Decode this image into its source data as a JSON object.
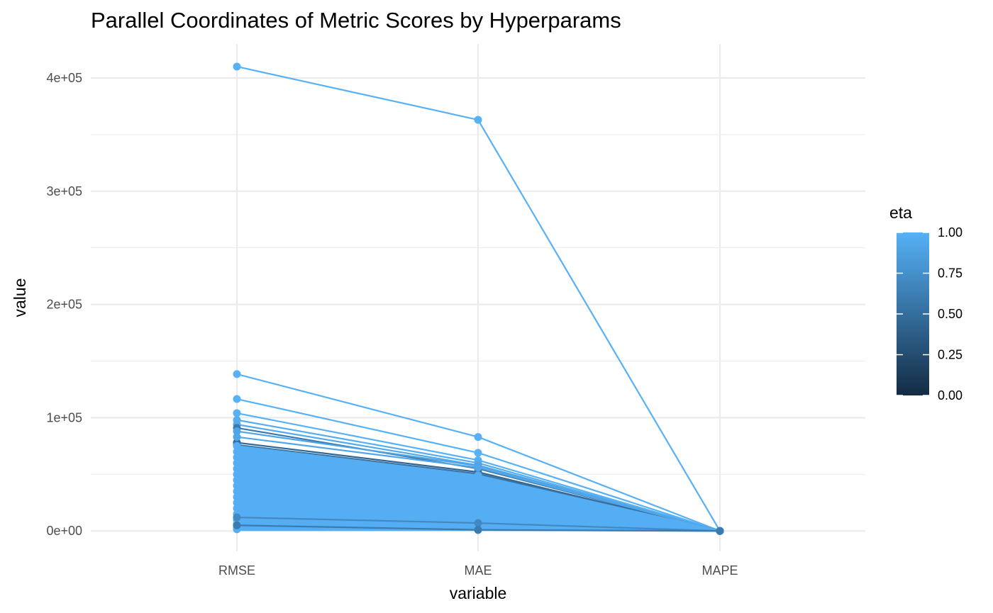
{
  "chart_data": {
    "type": "line",
    "title": "Parallel Coordinates of Metric Scores by Hyperparams",
    "xlabel": "variable",
    "ylabel": "value",
    "categories": [
      "RMSE",
      "MAE",
      "MAPE"
    ],
    "ylim": [
      -18000,
      430000
    ],
    "yticks": [
      {
        "value": 0,
        "label": "0e+00"
      },
      {
        "value": 100000,
        "label": "1e+05"
      },
      {
        "value": 200000,
        "label": "2e+05"
      },
      {
        "value": 300000,
        "label": "3e+05"
      },
      {
        "value": 400000,
        "label": "4e+05"
      }
    ],
    "y_minor_ticks": [
      50000,
      150000,
      250000,
      350000
    ],
    "grid": true,
    "legend": {
      "title": "eta",
      "position": "right",
      "labels": [
        {
          "value": 1.0,
          "label": "1.00"
        },
        {
          "value": 0.75,
          "label": "0.75"
        },
        {
          "value": 0.5,
          "label": "0.50"
        },
        {
          "value": 0.25,
          "label": "0.25"
        },
        {
          "value": 0.0,
          "label": "0.00"
        }
      ],
      "colors": {
        "low": "#132B43",
        "high": "#56B1F7"
      }
    },
    "series": [
      {
        "eta": 1.0,
        "values": [
          410000,
          363000,
          0.5
        ]
      },
      {
        "eta": 1.0,
        "values": [
          138500,
          83000,
          0.4
        ]
      },
      {
        "eta": 1.0,
        "values": [
          116500,
          69000,
          0.4
        ]
      },
      {
        "eta": 1.0,
        "values": [
          104000,
          62500,
          0.4
        ]
      },
      {
        "eta": 0.97,
        "values": [
          98000,
          60000,
          0.35
        ]
      },
      {
        "eta": 0.95,
        "values": [
          94000,
          58000,
          0.35
        ]
      },
      {
        "eta": 0.6,
        "values": [
          91000,
          55000,
          0.35
        ]
      },
      {
        "eta": 0.9,
        "values": [
          88000,
          57500,
          0.35
        ]
      },
      {
        "eta": 0.45,
        "values": [
          78000,
          52000,
          0.3
        ]
      },
      {
        "eta": 0.55,
        "values": [
          76000,
          50500,
          0.3
        ]
      },
      {
        "eta": 0.92,
        "values": [
          83000,
          56000,
          0.3
        ]
      },
      {
        "eta": 0.98,
        "values": [
          75000,
          49000,
          0.3
        ]
      },
      {
        "eta": 0.98,
        "values": [
          70000,
          46000,
          0.3
        ]
      },
      {
        "eta": 0.98,
        "values": [
          65000,
          42000,
          0.28
        ]
      },
      {
        "eta": 0.98,
        "values": [
          60000,
          39000,
          0.26
        ]
      },
      {
        "eta": 0.98,
        "values": [
          55000,
          36000,
          0.25
        ]
      },
      {
        "eta": 0.98,
        "values": [
          50000,
          33000,
          0.24
        ]
      },
      {
        "eta": 0.98,
        "values": [
          45000,
          30000,
          0.22
        ]
      },
      {
        "eta": 0.98,
        "values": [
          40000,
          27000,
          0.21
        ]
      },
      {
        "eta": 0.98,
        "values": [
          35000,
          24000,
          0.2
        ]
      },
      {
        "eta": 0.98,
        "values": [
          30000,
          20000,
          0.19
        ]
      },
      {
        "eta": 0.98,
        "values": [
          25000,
          16000,
          0.18
        ]
      },
      {
        "eta": 0.98,
        "values": [
          20000,
          12000,
          0.17
        ]
      },
      {
        "eta": 0.98,
        "values": [
          15000,
          9000,
          0.16
        ]
      },
      {
        "eta": 0.98,
        "values": [
          10000,
          6000,
          0.15
        ]
      },
      {
        "eta": 0.98,
        "values": [
          6000,
          3500,
          0.14
        ]
      },
      {
        "eta": 0.98,
        "values": [
          3000,
          1500,
          0.13
        ]
      },
      {
        "eta": 0.98,
        "values": [
          1500,
          800,
          0.12
        ]
      },
      {
        "eta": 0.7,
        "values": [
          12000,
          7000,
          0.15
        ]
      },
      {
        "eta": 0.6,
        "values": [
          5000,
          1000,
          0.12
        ]
      }
    ]
  }
}
